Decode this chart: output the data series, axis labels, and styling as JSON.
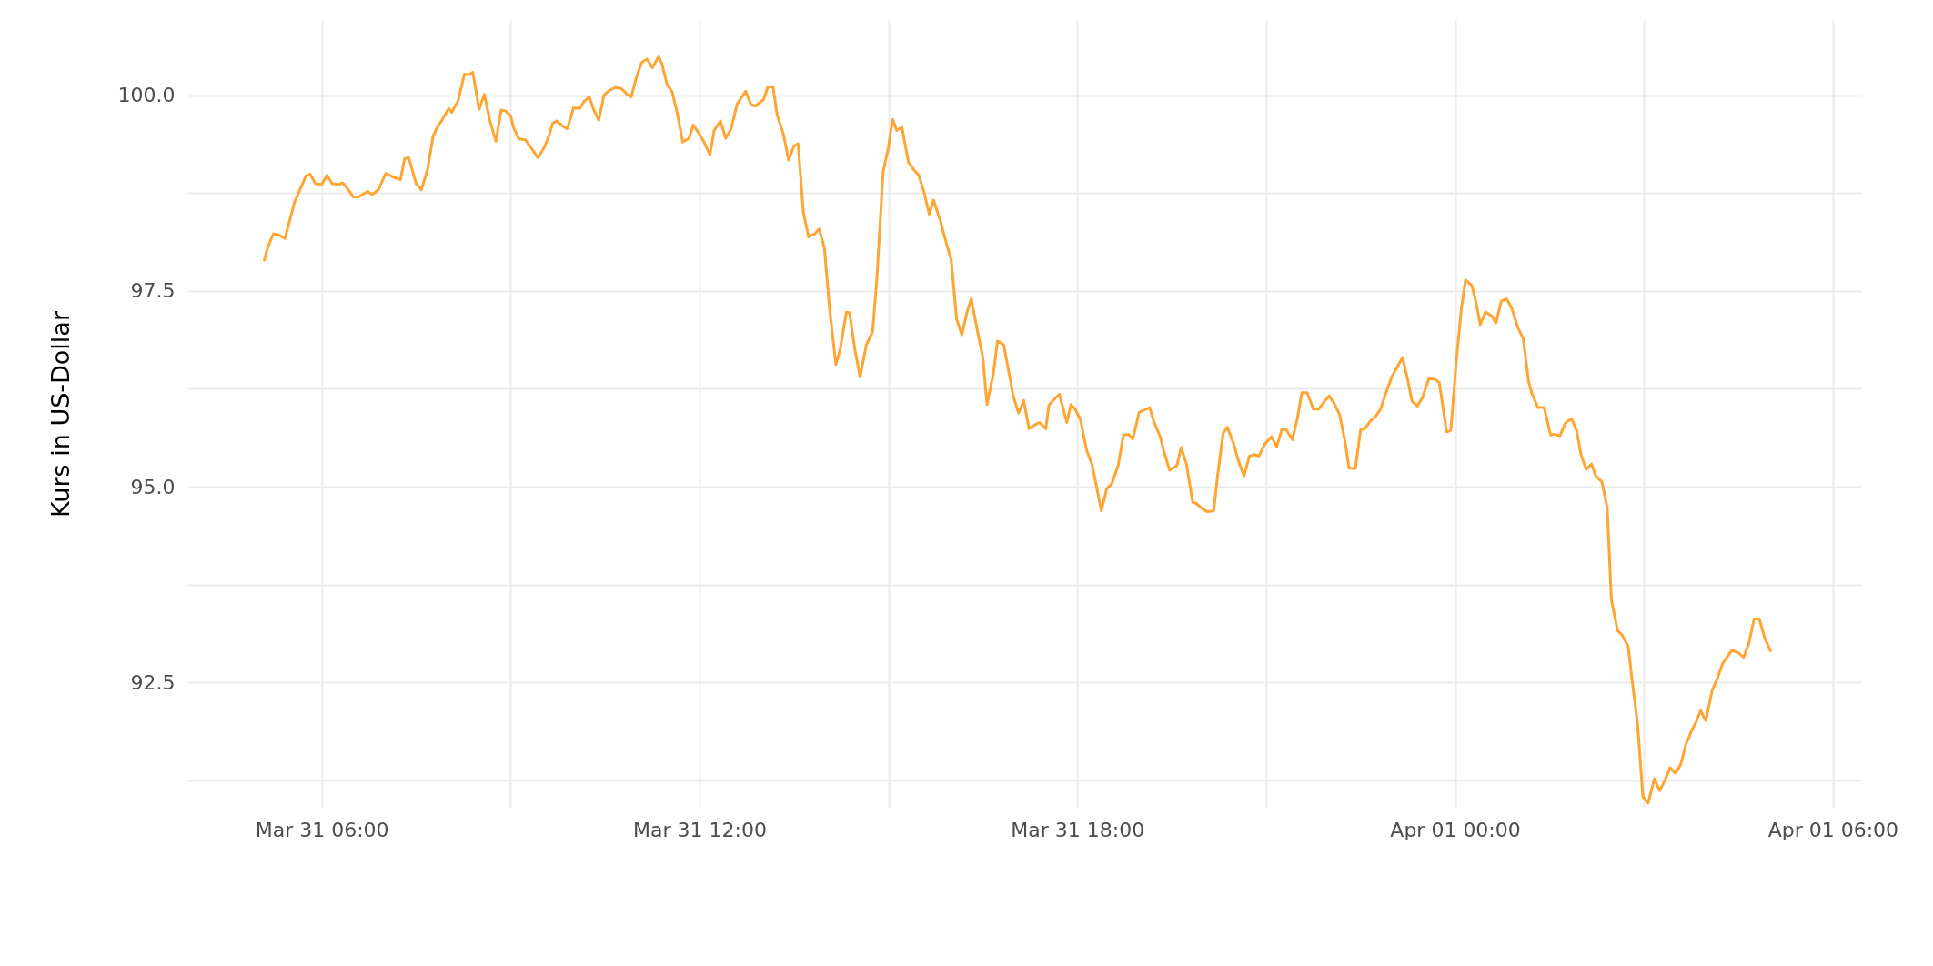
{
  "chart_data": {
    "type": "line",
    "ylabel": "Kurs in US-Dollar",
    "x": [
      "--03-31T05:05",
      "--03-31T05:09",
      "--03-31T05:14",
      "--03-31T05:20",
      "--03-31T05:25",
      "--03-31T05:34",
      "--03-31T05:45",
      "--03-31T05:49",
      "--03-31T05:54",
      "--03-31T06:00",
      "--03-31T06:05",
      "--03-31T06:10",
      "--03-31T06:16",
      "--03-31T06:20",
      "--03-31T06:25",
      "--03-31T06:30",
      "--03-31T06:35",
      "--03-31T06:44",
      "--03-31T06:48",
      "--03-31T06:54",
      "--03-31T07:01",
      "--03-31T07:09",
      "--03-31T07:15",
      "--03-31T07:19",
      "--03-31T07:23",
      "--03-31T07:30",
      "--03-31T07:35",
      "--03-31T07:41",
      "--03-31T07:46",
      "--03-31T07:50",
      "--03-31T07:55",
      "--03-31T08:01",
      "--03-31T08:04",
      "--03-31T08:10",
      "--03-31T08:16",
      "--03-31T08:20",
      "--03-31T08:24",
      "--03-31T08:30",
      "--03-31T08:35",
      "--03-31T08:40",
      "--03-31T08:46",
      "--03-31T08:51",
      "--03-31T08:55",
      "--03-31T09:00",
      "--03-31T09:03",
      "--03-31T09:08",
      "--03-31T09:14",
      "--03-31T09:21",
      "--03-31T09:26",
      "--03-31T09:32",
      "--03-31T09:37",
      "--03-31T09:40",
      "--03-31T09:44",
      "--03-31T09:49",
      "--03-31T09:54",
      "--03-31T10:00",
      "--03-31T10:06",
      "--03-31T10:10",
      "--03-31T10:15",
      "--03-31T10:19",
      "--03-31T10:24",
      "--03-31T10:29",
      "--03-31T10:34",
      "--03-31T10:40",
      "--03-31T10:46",
      "--03-31T10:51",
      "--03-31T10:55",
      "--03-31T11:00",
      "--03-31T11:05",
      "--03-31T11:10",
      "--03-31T11:15",
      "--03-31T11:21",
      "--03-31T11:24",
      "--03-31T11:29",
      "--03-31T11:34",
      "--03-31T11:39",
      "--03-31T11:44",
      "--03-31T11:50",
      "--03-31T11:54",
      "--03-31T12:00",
      "--03-31T12:04",
      "--03-31T12:10",
      "--03-31T12:14",
      "--03-31T12:20",
      "--03-31T12:25",
      "--03-31T12:30",
      "--03-31T12:36",
      "--03-31T12:44",
      "--03-31T12:49",
      "--03-31T12:53",
      "--03-31T13:01",
      "--03-31T13:05",
      "--03-31T13:10",
      "--03-31T13:14",
      "--03-31T13:20",
      "--03-31T13:25",
      "--03-31T13:30",
      "--03-31T13:34",
      "--03-31T13:39",
      "--03-31T13:44",
      "--03-31T13:50",
      "--03-31T13:54",
      "--03-31T13:59",
      "--03-31T14:04",
      "--03-31T14:10",
      "--03-31T14:14",
      "--03-31T14:20",
      "--03-31T14:23",
      "--03-31T14:28",
      "--03-31T14:33",
      "--03-31T14:39",
      "--03-31T14:45",
      "--03-31T14:49",
      "--03-31T14:55",
      "--03-31T15:00",
      "--03-31T15:04",
      "--03-31T15:08",
      "--03-31T15:13",
      "--03-31T15:19",
      "--03-31T15:24",
      "--03-31T15:29",
      "--03-31T15:34",
      "--03-31T15:39",
      "--03-31T15:43",
      "--03-31T15:49",
      "--03-31T15:54",
      "--03-31T16:00",
      "--03-31T16:05",
      "--03-31T16:10",
      "--03-31T16:15",
      "--03-31T16:19",
      "--03-31T16:25",
      "--03-31T16:30",
      "--03-31T16:34",
      "--03-31T16:40",
      "--03-31T16:44",
      "--03-31T16:50",
      "--03-31T16:54",
      "--03-31T16:59",
      "--03-31T17:04",
      "--03-31T17:09",
      "--03-31T17:14",
      "--03-31T17:21",
      "--03-31T17:24",
      "--03-31T17:30",
      "--03-31T17:33",
      "--03-31T17:39",
      "--03-31T17:43",
      "--03-31T17:50",
      "--03-31T17:54",
      "--03-31T17:58",
      "--03-31T18:03",
      "--03-31T18:09",
      "--03-31T18:14",
      "--03-31T18:23",
      "--03-31T18:28",
      "--03-31T18:33",
      "--03-31T18:39",
      "--03-31T18:44",
      "--03-31T18:49",
      "--03-31T18:53",
      "--03-31T18:59",
      "--03-31T19:02",
      "--03-31T19:09",
      "--03-31T19:13",
      "--03-31T19:19",
      "--03-31T19:23",
      "--03-31T19:28",
      "--03-31T19:35",
      "--03-31T19:39",
      "--03-31T19:44",
      "--03-31T19:50",
      "--03-31T19:53",
      "--03-31T19:59",
      "--03-31T20:04",
      "--03-31T20:10",
      "--03-31T20:14",
      "--03-31T20:19",
      "--03-31T20:23",
      "--03-31T20:29",
      "--03-31T20:34",
      "--03-31T20:39",
      "--03-31T20:44",
      "--03-31T20:49",
      "--03-31T20:53",
      "--03-31T20:59",
      "--03-31T21:05",
      "--03-31T21:10",
      "--03-31T21:15",
      "--03-31T21:19",
      "--03-31T21:25",
      "--03-31T21:30",
      "--03-31T21:34",
      "--03-31T21:39",
      "--03-31T21:45",
      "--03-31T21:50",
      "--03-31T21:55",
      "--03-31T22:00",
      "--03-31T22:05",
      "--03-31T22:10",
      "--03-31T22:15",
      "--03-31T22:19",
      "--03-31T22:25",
      "--03-31T22:30",
      "--03-31T22:34",
      "--03-31T22:40",
      "--03-31T22:44",
      "--03-31T22:49",
      "--03-31T22:55",
      "--03-31T23:00",
      "--03-31T23:05",
      "--03-31T23:10",
      "--03-31T23:15",
      "--03-31T23:19",
      "--03-31T23:24",
      "--03-31T23:29",
      "--03-31T23:35",
      "--03-31T23:41",
      "--03-31T23:45",
      "--03-31T23:52",
      "--03-31T23:56",
      "--04-01T00:01",
      "--04-01T00:06",
      "--04-01T00:10",
      "--04-01T00:16",
      "--04-01T00:20",
      "--04-01T00:24",
      "--04-01T00:29",
      "--04-01T00:35",
      "--04-01T00:39",
      "--04-01T00:44",
      "--04-01T00:49",
      "--04-01T00:54",
      "--04-01T01:00",
      "--04-01T01:05",
      "--04-01T01:10",
      "--04-01T01:13",
      "--04-01T01:19",
      "--04-01T01:25",
      "--04-01T01:31",
      "--04-01T01:34",
      "--04-01T01:40",
      "--04-01T01:45",
      "--04-01T01:51",
      "--04-01T01:56",
      "--04-01T02:00",
      "--04-01T02:05",
      "--04-01T02:10",
      "--04-01T02:14",
      "--04-01T02:20",
      "--04-01T02:25",
      "--04-01T02:29",
      "--04-01T02:35",
      "--04-01T02:39",
      "--04-01T02:45",
      "--04-01T02:49",
      "--04-01T02:54",
      "--04-01T02:59",
      "--04-01T03:04",
      "--04-01T03:10",
      "--04-01T03:15",
      "--04-01T03:20",
      "--04-01T03:25",
      "--04-01T03:30",
      "--04-01T03:35",
      "--04-01T03:40",
      "--04-01T03:46",
      "--04-01T03:50",
      "--04-01T03:54",
      "--04-01T03:59",
      "--04-01T04:05",
      "--04-01T04:10",
      "--04-01T04:15",
      "--04-01T04:20",
      "--04-01T04:24",
      "--04-01T04:30",
      "--04-01T04:35",
      "--04-01T04:40",
      "--04-01T04:45",
      "--04-01T04:50",
      "--04-01T04:55",
      "--04-01T05:01"
    ],
    "series": [
      {
        "color": "#ffa533",
        "values": [
          97.88,
          98.07,
          98.23,
          98.21,
          98.17,
          98.63,
          98.97,
          98.99,
          98.87,
          98.86,
          98.98,
          98.87,
          98.86,
          98.88,
          98.8,
          98.7,
          98.7,
          98.77,
          98.73,
          98.79,
          99.0,
          98.95,
          98.92,
          99.19,
          99.2,
          98.87,
          98.79,
          99.06,
          99.47,
          99.59,
          99.69,
          99.83,
          99.78,
          99.93,
          100.27,
          100.26,
          100.29,
          99.82,
          100.01,
          99.69,
          99.41,
          99.81,
          99.8,
          99.74,
          99.58,
          99.44,
          99.43,
          99.3,
          99.2,
          99.33,
          99.5,
          99.64,
          99.67,
          99.61,
          99.57,
          99.84,
          99.83,
          99.92,
          99.98,
          99.82,
          99.68,
          100.0,
          100.06,
          100.1,
          100.08,
          100.01,
          99.98,
          100.23,
          100.42,
          100.46,
          100.35,
          100.49,
          100.41,
          100.14,
          100.04,
          99.76,
          99.4,
          99.45,
          99.62,
          99.5,
          99.41,
          99.24,
          99.55,
          99.67,
          99.45,
          99.57,
          99.89,
          100.05,
          99.88,
          99.86,
          99.94,
          100.1,
          100.11,
          99.75,
          99.5,
          99.17,
          99.35,
          99.38,
          98.5,
          98.19,
          98.23,
          98.29,
          98.05,
          97.27,
          96.56,
          96.75,
          97.23,
          97.22,
          96.76,
          96.4,
          96.81,
          96.98,
          97.65,
          99.02,
          99.33,
          99.69,
          99.55,
          99.59,
          99.15,
          99.05,
          98.98,
          98.76,
          98.48,
          98.66,
          98.42,
          98.17,
          97.89,
          97.14,
          96.94,
          97.23,
          97.4,
          96.98,
          96.65,
          96.05,
          96.44,
          96.86,
          96.81,
          96.52,
          96.16,
          95.94,
          96.1,
          95.74,
          95.8,
          95.82,
          95.74,
          96.04,
          96.13,
          96.18,
          95.82,
          96.05,
          95.99,
          95.86,
          95.46,
          95.29,
          94.69,
          94.97,
          95.04,
          95.27,
          95.66,
          95.67,
          95.61,
          95.95,
          95.97,
          96.01,
          95.83,
          95.64,
          95.43,
          95.21,
          95.27,
          95.5,
          95.29,
          94.8,
          94.79,
          94.72,
          94.68,
          94.69,
          95.17,
          95.68,
          95.76,
          95.55,
          95.31,
          95.14,
          95.39,
          95.41,
          95.39,
          95.55,
          95.64,
          95.51,
          95.73,
          95.73,
          95.6,
          95.89,
          96.2,
          96.2,
          95.99,
          95.99,
          96.08,
          96.16,
          96.06,
          95.92,
          95.59,
          95.24,
          95.23,
          95.73,
          95.74,
          95.85,
          95.89,
          95.99,
          96.23,
          96.41,
          96.53,
          96.65,
          96.36,
          96.09,
          96.03,
          96.14,
          96.38,
          96.37,
          96.33,
          95.7,
          95.72,
          96.57,
          97.27,
          97.64,
          97.57,
          97.36,
          97.07,
          97.23,
          97.18,
          97.09,
          97.37,
          97.4,
          97.28,
          97.03,
          96.89,
          96.35,
          96.2,
          96.01,
          96.01,
          95.66,
          95.67,
          95.65,
          95.81,
          95.87,
          95.71,
          95.41,
          95.22,
          95.29,
          95.14,
          95.06,
          94.73,
          93.55,
          93.16,
          93.11,
          92.96,
          92.5,
          91.96,
          91.04,
          90.96,
          91.27,
          91.12,
          91.25,
          91.41,
          91.34,
          91.45,
          91.71,
          91.9,
          92.0,
          92.14,
          92.01,
          92.4,
          92.55,
          92.74,
          92.84,
          92.91,
          92.88,
          92.82,
          93.0,
          93.31,
          93.31,
          93.07,
          92.89
        ]
      }
    ],
    "xlim": [
      "--03-31T03:52",
      "--04-01T06:27"
    ],
    "xticks": [
      {
        "value": "--03-31T06:00",
        "label": "Mar 31 06:00"
      },
      {
        "value": "--03-31T09:00",
        "label": null
      },
      {
        "value": "--03-31T12:00",
        "label": "Mar 31 12:00"
      },
      {
        "value": "--03-31T15:00",
        "label": null
      },
      {
        "value": "--03-31T18:00",
        "label": "Mar 31 18:00"
      },
      {
        "value": "--03-31T21:00",
        "label": null
      },
      {
        "value": "--04-01T00:00",
        "label": "Apr 01 00:00"
      },
      {
        "value": "--04-01T03:00",
        "label": null
      },
      {
        "value": "--04-01T06:00",
        "label": "Apr 01 06:00"
      }
    ],
    "ylim": [
      90.9,
      100.96
    ],
    "yticks": [
      {
        "value": 91.25,
        "label": null
      },
      92.5,
      {
        "value": 93.75,
        "label": null
      },
      {
        "value": 95,
        "label": "95.0"
      },
      {
        "value": 96.25,
        "label": null
      },
      97.5,
      {
        "value": 98.75,
        "label": null
      },
      {
        "value": 100,
        "label": "100.0"
      }
    ],
    "grid": true,
    "marker": "none",
    "line_style": "solid"
  }
}
